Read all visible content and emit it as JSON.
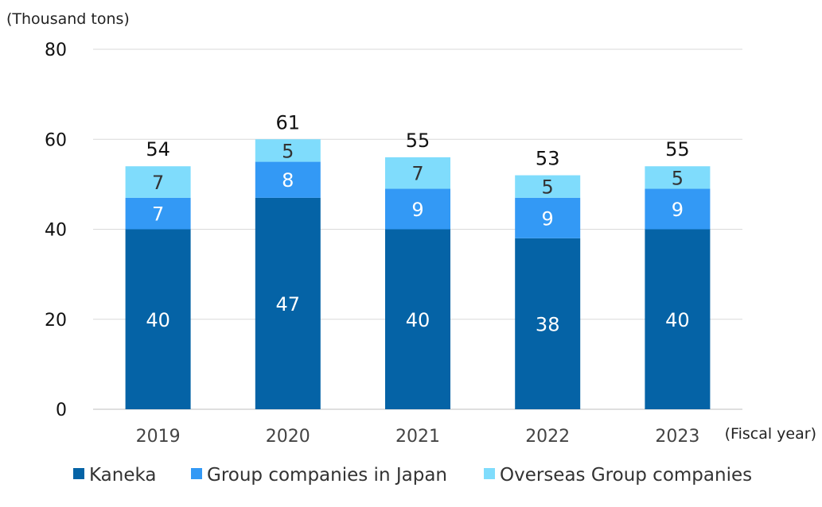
{
  "chart_data": {
    "type": "bar",
    "stacked": true,
    "categories": [
      "2019",
      "2020",
      "2021",
      "2022",
      "2023"
    ],
    "series": [
      {
        "name": "Kaneka",
        "values": [
          40,
          47,
          40,
          38,
          40
        ],
        "color": "#0563a6",
        "label_color": "#ffffff"
      },
      {
        "name": "Group companies in Japan",
        "values": [
          7,
          8,
          9,
          9,
          9
        ],
        "color": "#3399f5",
        "label_color": "#ffffff"
      },
      {
        "name": "Overseas Group companies",
        "values": [
          7,
          5,
          7,
          5,
          5
        ],
        "color": "#7fdcfc",
        "label_color": "#333333"
      }
    ],
    "totals": [
      54,
      61,
      55,
      53,
      55
    ],
    "ylabel": "(Thousand tons)",
    "xlabel": "(Fiscal year)",
    "ylim": [
      0,
      80
    ],
    "yticks": [
      0,
      20,
      40,
      60,
      80
    ],
    "grid": true,
    "legend_position": "bottom"
  }
}
